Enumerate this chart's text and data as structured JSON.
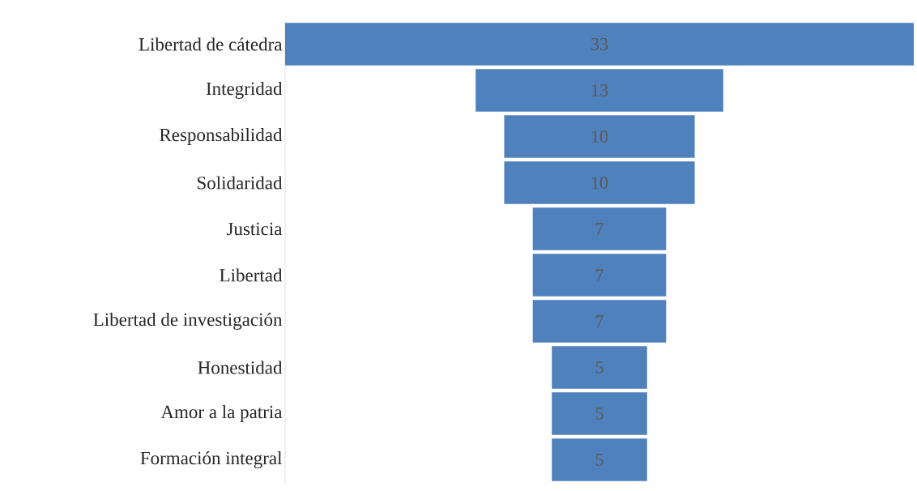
{
  "chart_data": {
    "type": "other",
    "categories": [
      "Libertad de cátedra",
      "Integridad",
      "Responsabilidad",
      "Solidaridad",
      "Justicia",
      "Libertad",
      "Libertad de investigación",
      "Honestidad",
      "Amor a la patria",
      "Formación integral"
    ],
    "values": [
      33,
      13,
      10,
      10,
      7,
      7,
      7,
      5,
      5,
      5
    ],
    "color": "#4f81bd",
    "data_labels": true
  }
}
